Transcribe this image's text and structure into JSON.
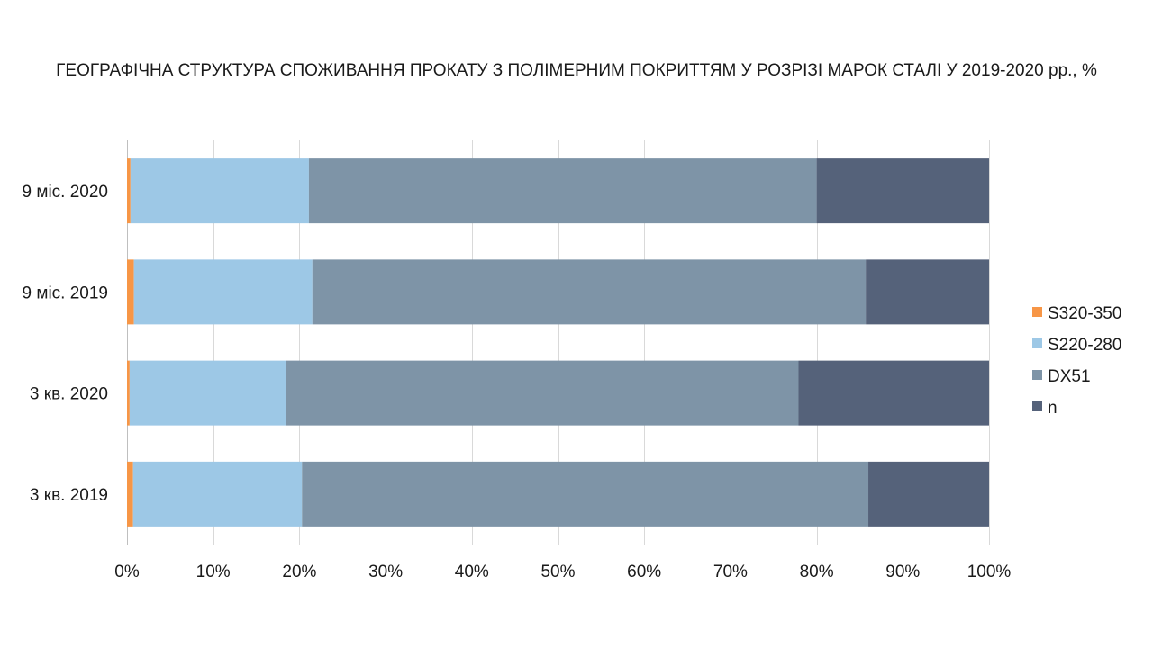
{
  "chart_data": {
    "type": "bar",
    "orientation": "horizontal",
    "stacked": true,
    "title": "ГЕОГРАФІЧНА СТРУКТУРА СПОЖИВАННЯ ПРОКАТУ З ПОЛІМЕРНИМ ПОКРИТТЯМ У РОЗРІЗІ МАРОК СТАЛІ У 2019-2020 рр., %",
    "xlabel": "",
    "ylabel": "",
    "xlim": [
      0,
      100
    ],
    "x_ticks": [
      "0%",
      "10%",
      "20%",
      "30%",
      "40%",
      "50%",
      "60%",
      "70%",
      "80%",
      "90%",
      "100%"
    ],
    "grid": true,
    "legend_position": "right",
    "categories": [
      "9 міс. 2020",
      "9 міс. 2019",
      "3 кв. 2020",
      "3 кв. 2019"
    ],
    "series": [
      {
        "name": "S320-350",
        "color": "#F79646",
        "values": [
          0.4,
          0.8,
          0.3,
          0.7
        ]
      },
      {
        "name": "S220-280",
        "color": "#9DC8E6",
        "values": [
          20.7,
          20.7,
          18.1,
          19.6
        ]
      },
      {
        "name": "DX51",
        "color": "#7E94A7",
        "values": [
          58.9,
          64.2,
          59.5,
          65.7
        ]
      },
      {
        "name": "n",
        "color": "#55627A",
        "values": [
          20.0,
          14.3,
          22.1,
          14.0
        ]
      }
    ]
  }
}
